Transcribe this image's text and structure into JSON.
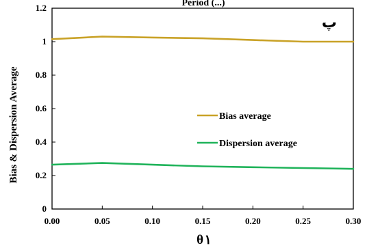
{
  "chart_data": {
    "type": "line",
    "title": "Period (...)",
    "corner_label": "پ",
    "xlabel": "θ ١",
    "ylabel": "Bias & Dispersion Average",
    "xlim": [
      0,
      0.3
    ],
    "ylim": [
      0,
      1.2
    ],
    "x_ticks": [
      "0.00",
      "0.05",
      "0.10",
      "0.15",
      "0.20",
      "0.25",
      "0.30"
    ],
    "y_ticks": [
      "0",
      "0.2",
      "0.4",
      "0.6",
      "0.8",
      "1",
      "1.2"
    ],
    "grid": false,
    "legend_position": "center-right",
    "x": [
      0.0,
      0.05,
      0.1,
      0.15,
      0.2,
      0.25,
      0.3
    ],
    "series": [
      {
        "name": "Bias average",
        "color": "#C9A227",
        "values": [
          1.015,
          1.03,
          1.025,
          1.02,
          1.01,
          1.0,
          1.0
        ]
      },
      {
        "name": "Dispersion average",
        "color": "#1FB35A",
        "values": [
          0.265,
          0.275,
          0.265,
          0.255,
          0.25,
          0.245,
          0.24
        ]
      }
    ]
  }
}
